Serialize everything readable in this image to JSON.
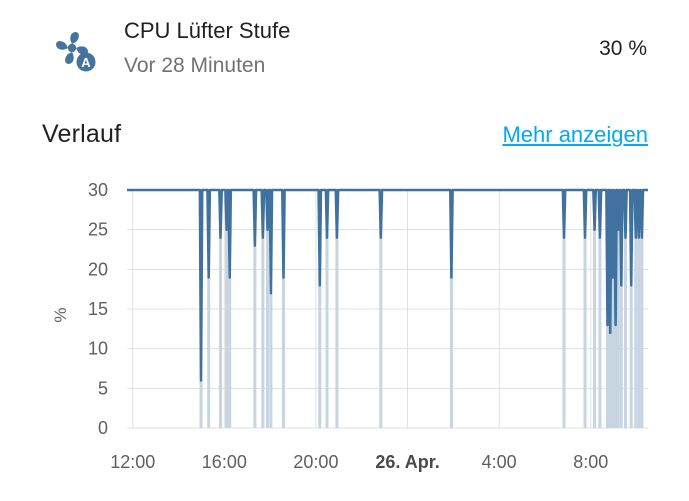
{
  "entity": {
    "name": "CPU Lüfter Stufe",
    "last_changed": "Vor 28 Minuten",
    "state": "30 %",
    "icon": "fan-auto-icon"
  },
  "history": {
    "title": "Verlauf",
    "more_link": "Mehr anzeigen"
  },
  "colors": {
    "line": "#41729f",
    "fill": "#c7d4e1",
    "link": "#03a9f4",
    "icon": "#44739e",
    "grid": "#e0e0e0"
  },
  "chart_data": {
    "type": "line",
    "ylabel": "%",
    "ylim": [
      0,
      30
    ],
    "yticks": [
      "0",
      "5",
      "10",
      "15",
      "20",
      "25",
      "30"
    ],
    "xlim": [
      "2025-04-25 11:45",
      "2025-04-26 10:30"
    ],
    "xticks": [
      {
        "label": "12:00",
        "t": "2025-04-25 12:00",
        "bold": false
      },
      {
        "label": "16:00",
        "t": "2025-04-25 16:00",
        "bold": false
      },
      {
        "label": "20:00",
        "t": "2025-04-25 20:00",
        "bold": false
      },
      {
        "label": "26. Apr.",
        "t": "2025-04-26 00:00",
        "bold": true
      },
      {
        "label": "4:00",
        "t": "2025-04-26 04:00",
        "bold": false
      },
      {
        "label": "8:00",
        "t": "2025-04-26 08:00",
        "bold": false
      }
    ],
    "grid": true,
    "legend": "none",
    "dips": [
      [
        "2025-04-25 14:59",
        6
      ],
      [
        "2025-04-25 15:19",
        19
      ],
      [
        "2025-04-25 15:50",
        24
      ],
      [
        "2025-04-25 16:06",
        25
      ],
      [
        "2025-04-25 16:14",
        19
      ],
      [
        "2025-04-25 17:20",
        23
      ],
      [
        "2025-04-25 17:41",
        24
      ],
      [
        "2025-04-25 17:53",
        25
      ],
      [
        "2025-04-25 18:02",
        17
      ],
      [
        "2025-04-25 18:35",
        19
      ],
      [
        "2025-04-25 20:10",
        18
      ],
      [
        "2025-04-25 20:29",
        24
      ],
      [
        "2025-04-25 20:55",
        24
      ],
      [
        "2025-04-25 22:50",
        24
      ],
      [
        "2025-04-26 01:55",
        19
      ],
      [
        "2025-04-26 06:50",
        24
      ],
      [
        "2025-04-26 07:45",
        24
      ],
      [
        "2025-04-26 08:10",
        25
      ],
      [
        "2025-04-26 08:24",
        24
      ],
      [
        "2025-04-26 08:44",
        13
      ],
      [
        "2025-04-26 08:51",
        12
      ],
      [
        "2025-04-26 08:58",
        19
      ],
      [
        "2025-04-26 09:05",
        13
      ],
      [
        "2025-04-26 09:12",
        25
      ],
      [
        "2025-04-26 09:20",
        18
      ],
      [
        "2025-04-26 09:31",
        24
      ],
      [
        "2025-04-26 09:46",
        18
      ],
      [
        "2025-04-26 09:58",
        24
      ],
      [
        "2025-04-26 10:06",
        24
      ],
      [
        "2025-04-26 10:14",
        24
      ]
    ]
  }
}
